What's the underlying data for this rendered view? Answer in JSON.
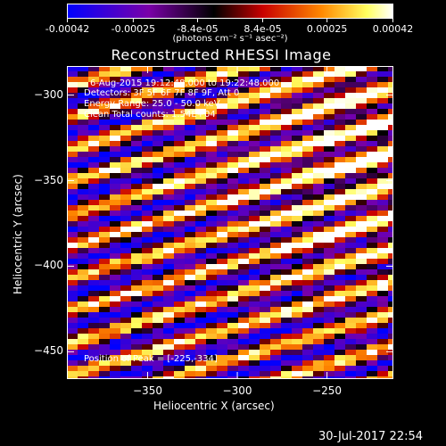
{
  "colorbar": {
    "ticks": [
      "-0.00042",
      "-0.00025",
      "-8.4e-05",
      "8.4e-05",
      "0.00025",
      "0.00042"
    ],
    "tick_values": [
      -0.00042,
      -0.00025,
      -8.4e-05,
      8.4e-05,
      0.00025,
      0.00042
    ],
    "unit_label": "(photons cm⁻² s⁻¹ asec⁻²)",
    "colors": [
      "#0000ff",
      "#7a00a8",
      "#000000",
      "#c80000",
      "#ff8800",
      "#ffff60",
      "#ffffff"
    ]
  },
  "title": "Reconstructed RHESSI Image",
  "annotations": {
    "time_range": "6-Aug-2015 19:12:48.000 to 19:22:48.000",
    "detectors": "Detectors: 3F 5F 6F 7F 8F 9F, Att 0",
    "energy": "Energy Range: 25.0 - 50.0 keV",
    "clean": "Clean     Total counts: 1.54E+04",
    "peak": "Position of Peak = [-225,-334]"
  },
  "timestamp": "30-Jul-2017 22:54",
  "chart_data": {
    "type": "heatmap",
    "title": "Reconstructed RHESSI Image",
    "xlabel": "Heliocentric X (arcsec)",
    "ylabel": "Heliocentric Y (arcsec)",
    "xlim": [
      -395,
      -213
    ],
    "ylim": [
      -466,
      -283
    ],
    "x_ticks": [
      -350,
      -300,
      -250
    ],
    "x_tick_labels": [
      "−350",
      "−300",
      "−250"
    ],
    "y_ticks": [
      -300,
      -350,
      -400,
      -450
    ],
    "y_tick_labels": [
      "−300",
      "−350",
      "−400",
      "−450"
    ],
    "zlim": [
      -0.00042,
      0.00042
    ],
    "peak": [
      -225,
      -334
    ],
    "stripe_angle_deg": 17,
    "stripe_period_arcsec": 18
  }
}
